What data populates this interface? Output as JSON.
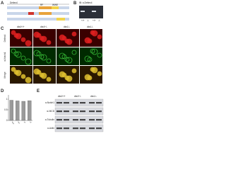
{
  "panels": [
    "A",
    "B",
    "C",
    "D",
    "E"
  ],
  "panel_a": {
    "labels": [
      "Deltex4",
      "RF",
      "WWE"
    ]
  },
  "panel_b": {
    "label": "IB: α-Deltex4",
    "lanes": [
      "+/+",
      "-/-",
      "+/+",
      "-/-"
    ]
  },
  "panel_c": {
    "columns": [
      "dtx4+/+",
      "dtx4+/-",
      "dtx4-/-",
      "dtx4-/-"
    ],
    "rows": [
      "Deltex4",
      "α-Notch1",
      "Merge"
    ]
  },
  "panel_d": {
    "categories": [
      "+/+",
      "+/-",
      "-/-",
      "-/-"
    ],
    "values": [
      0.95,
      0.92,
      0.9,
      0.93
    ],
    "ylim": [
      0,
      1.2
    ],
    "yticks": [
      0,
      0.5,
      1
    ],
    "color": "#9a9a9a"
  },
  "panel_e": {
    "columns": [
      "dtx4+/+",
      "dtx4+/-",
      "dtx4-/-"
    ],
    "rows": [
      "α-Notch1",
      "α-NICD",
      "α-Tubulin",
      "α-Actin"
    ]
  }
}
